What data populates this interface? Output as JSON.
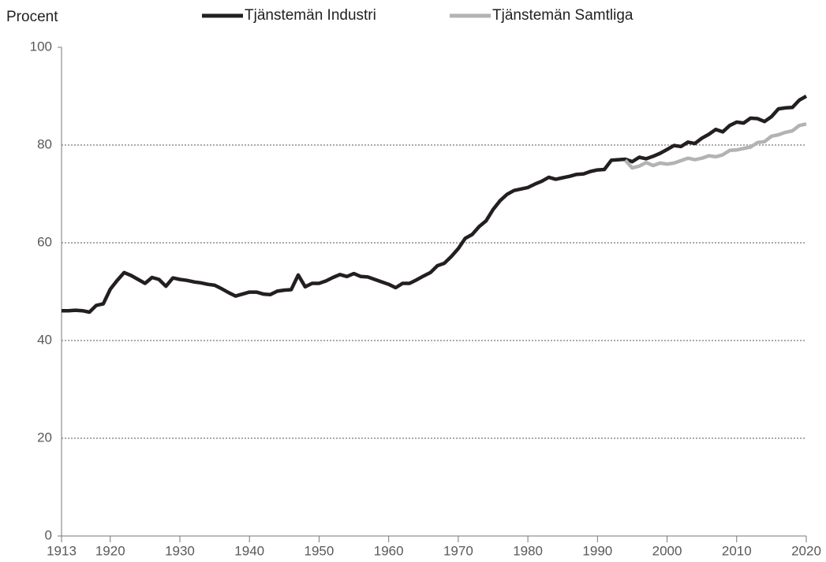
{
  "chart_data": {
    "type": "line",
    "y_label": "Procent",
    "x": [
      1913,
      1914,
      1915,
      1916,
      1917,
      1918,
      1919,
      1920,
      1921,
      1922,
      1923,
      1924,
      1925,
      1926,
      1927,
      1928,
      1929,
      1930,
      1931,
      1932,
      1933,
      1934,
      1935,
      1936,
      1937,
      1938,
      1939,
      1940,
      1941,
      1942,
      1943,
      1944,
      1945,
      1946,
      1947,
      1948,
      1949,
      1950,
      1951,
      1952,
      1953,
      1954,
      1955,
      1956,
      1957,
      1958,
      1959,
      1960,
      1961,
      1962,
      1963,
      1964,
      1965,
      1966,
      1967,
      1968,
      1969,
      1970,
      1971,
      1972,
      1973,
      1974,
      1975,
      1976,
      1977,
      1978,
      1979,
      1980,
      1981,
      1982,
      1983,
      1984,
      1985,
      1986,
      1987,
      1988,
      1989,
      1990,
      1991,
      1992,
      1993,
      1994,
      1995,
      1996,
      1997,
      1998,
      1999,
      2000,
      2001,
      2002,
      2003,
      2004,
      2005,
      2006,
      2007,
      2008,
      2009,
      2010,
      2011,
      2012,
      2013,
      2014,
      2015,
      2016,
      2017,
      2018,
      2019,
      2020
    ],
    "series": [
      {
        "name": "Tjänstemän Industri",
        "color": "#231f20",
        "values": [
          46.1,
          46.1,
          46.2,
          46.1,
          45.8,
          47.2,
          47.5,
          50.5,
          52.3,
          53.9,
          53.3,
          52.5,
          51.7,
          52.9,
          52.5,
          51.1,
          52.8,
          52.5,
          52.3,
          52.0,
          51.8,
          51.5,
          51.3,
          50.6,
          49.8,
          49.1,
          49.5,
          49.9,
          49.9,
          49.5,
          49.4,
          50.1,
          50.3,
          50.4,
          53.4,
          51.0,
          51.7,
          51.7,
          52.2,
          52.9,
          53.5,
          53.1,
          53.7,
          53.1,
          53.0,
          52.5,
          52.0,
          51.5,
          50.8,
          51.7,
          51.7,
          52.4,
          53.2,
          53.9,
          55.3,
          55.8,
          57.2,
          58.8,
          60.9,
          61.7,
          63.3,
          64.5,
          66.8,
          68.6,
          69.9,
          70.7,
          71.0,
          71.3,
          72.0,
          72.6,
          73.4,
          73.0,
          73.3,
          73.6,
          74.0,
          74.1,
          74.6,
          74.9,
          75.0,
          76.9,
          77.0,
          77.1,
          76.6,
          77.5,
          77.2,
          77.7,
          78.3,
          79.1,
          79.9,
          79.7,
          80.6,
          80.3,
          81.4,
          82.2,
          83.2,
          82.7,
          84.0,
          84.7,
          84.5,
          85.5,
          85.4,
          84.8,
          85.8,
          87.4,
          87.6,
          87.7,
          89.2,
          90.0
        ]
      },
      {
        "name": "Tjänstemän Samtliga",
        "color": "#b3b3b3",
        "values": [
          null,
          null,
          null,
          null,
          null,
          null,
          null,
          null,
          null,
          null,
          null,
          null,
          null,
          null,
          null,
          null,
          null,
          null,
          null,
          null,
          null,
          null,
          null,
          null,
          null,
          null,
          null,
          null,
          null,
          null,
          null,
          null,
          null,
          null,
          null,
          null,
          null,
          null,
          null,
          null,
          null,
          null,
          null,
          null,
          null,
          null,
          null,
          null,
          null,
          null,
          null,
          null,
          null,
          null,
          null,
          null,
          null,
          null,
          null,
          null,
          null,
          null,
          null,
          null,
          null,
          null,
          null,
          null,
          null,
          null,
          null,
          null,
          null,
          null,
          null,
          null,
          null,
          null,
          null,
          null,
          null,
          76.9,
          75.3,
          75.7,
          76.4,
          75.8,
          76.3,
          76.1,
          76.3,
          76.8,
          77.3,
          77.0,
          77.3,
          77.8,
          77.6,
          78.0,
          78.9,
          79.0,
          79.3,
          79.6,
          80.5,
          80.7,
          81.8,
          82.1,
          82.6,
          82.9,
          84.0,
          84.3
        ]
      }
    ],
    "xlim": [
      1913,
      2020
    ],
    "xticks": [
      1913,
      1920,
      1930,
      1940,
      1950,
      1960,
      1970,
      1980,
      1990,
      2000,
      2010,
      2020
    ],
    "ylim": [
      0,
      100
    ],
    "yticks": [
      0,
      20,
      40,
      60,
      80,
      100
    ],
    "grid": true,
    "legend": "top"
  }
}
